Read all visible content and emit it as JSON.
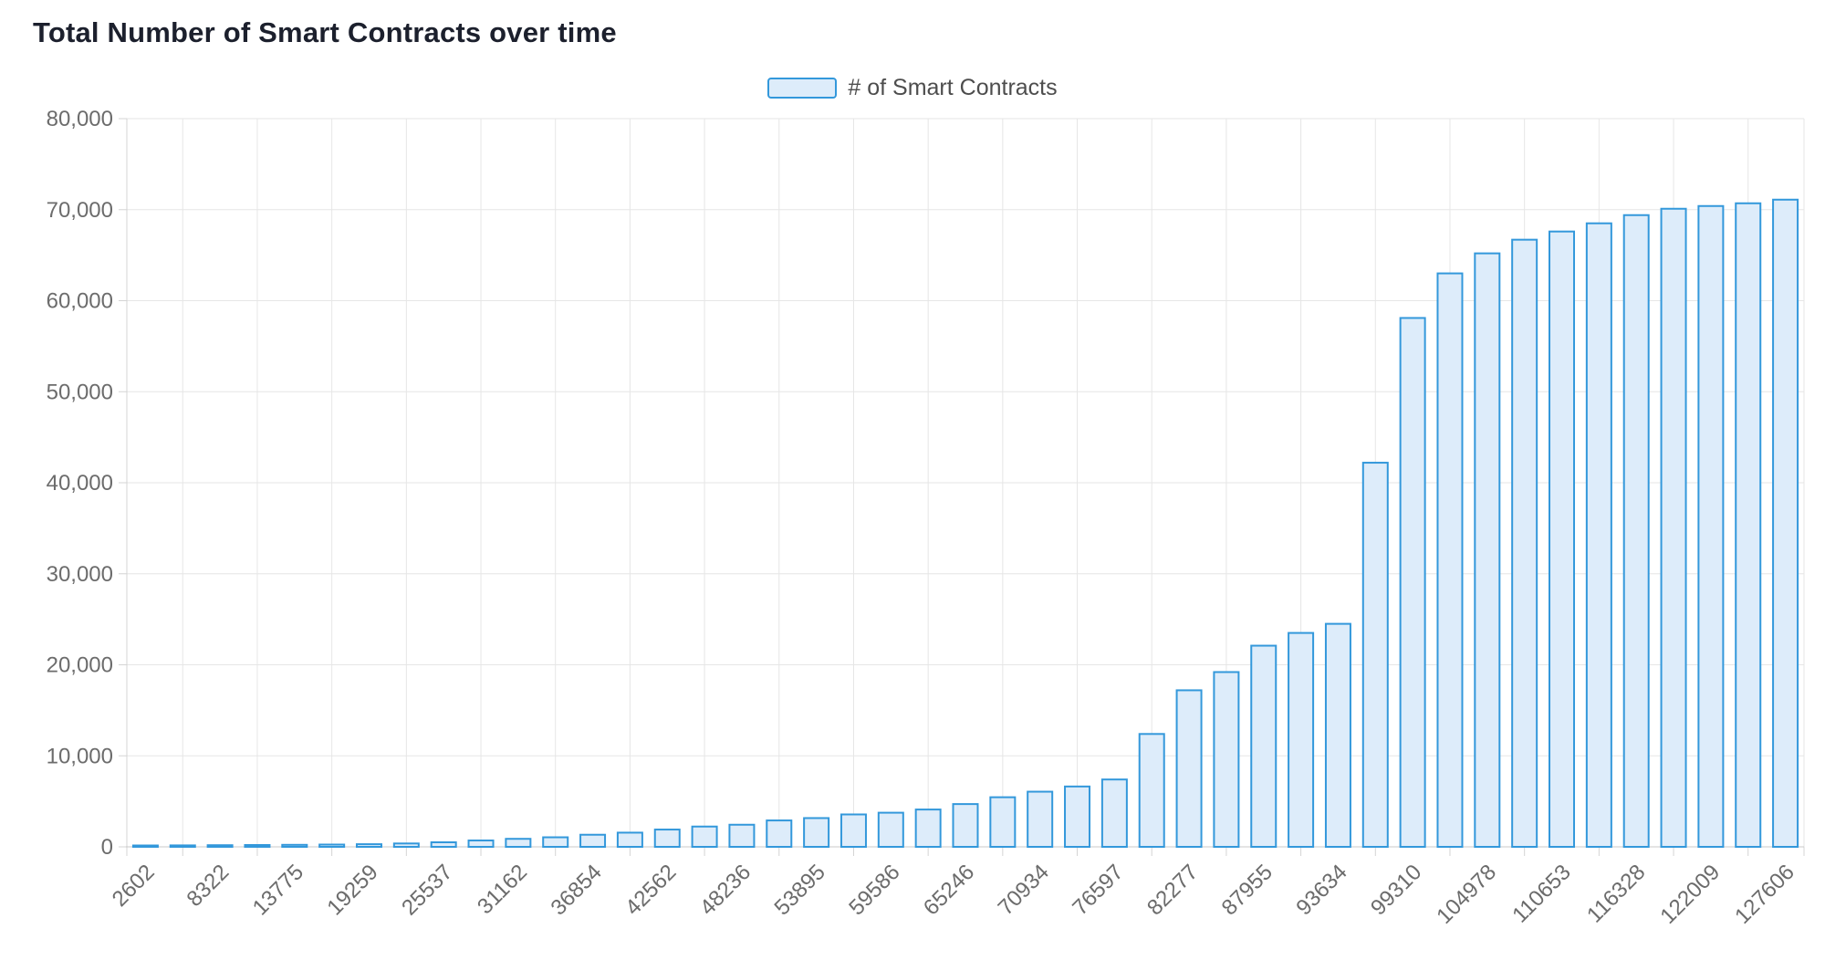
{
  "title": "Total Number of Smart Contracts over time",
  "legend": {
    "label": "# of Smart Contracts"
  },
  "colors": {
    "background": "#ffffff",
    "bar_fill": "#ddecfa",
    "bar_border": "#3398db",
    "grid_line": "#e6e6e6",
    "axis_line": "#c8c8c8",
    "tick_line": "#d4d4d4",
    "axis_text": "#6c6c6c",
    "title_text": "#1c202d",
    "legend_text": "#4d4d4d"
  },
  "chart_data": {
    "type": "bar",
    "title": "Total Number of Smart Contracts over time",
    "series_name": "# of Smart Contracts",
    "xlabel": "",
    "ylabel": "",
    "ylim": [
      0,
      80000
    ],
    "y_tick_step": 10000,
    "y_tick_labels": [
      "0",
      "10,000",
      "20,000",
      "30,000",
      "40,000",
      "50,000",
      "60,000",
      "70,000",
      "80,000"
    ],
    "grid": true,
    "legend_position": "top-center",
    "x_tick_rotation": 45,
    "x_labels_every": 2,
    "bars": [
      {
        "label": "2602",
        "value": 150
      },
      {
        "label": "",
        "value": 160
      },
      {
        "label": "8322",
        "value": 180
      },
      {
        "label": "",
        "value": 200
      },
      {
        "label": "13775",
        "value": 220
      },
      {
        "label": "",
        "value": 250
      },
      {
        "label": "19259",
        "value": 290
      },
      {
        "label": "",
        "value": 370
      },
      {
        "label": "25537",
        "value": 500
      },
      {
        "label": "",
        "value": 700
      },
      {
        "label": "31162",
        "value": 880
      },
      {
        "label": "",
        "value": 1050
      },
      {
        "label": "36854",
        "value": 1330
      },
      {
        "label": "",
        "value": 1560
      },
      {
        "label": "42562",
        "value": 1900
      },
      {
        "label": "",
        "value": 2230
      },
      {
        "label": "48236",
        "value": 2430
      },
      {
        "label": "",
        "value": 2900
      },
      {
        "label": "53895",
        "value": 3160
      },
      {
        "label": "",
        "value": 3560
      },
      {
        "label": "59586",
        "value": 3750
      },
      {
        "label": "",
        "value": 4100
      },
      {
        "label": "65246",
        "value": 4700
      },
      {
        "label": "",
        "value": 5450
      },
      {
        "label": "70934",
        "value": 6060
      },
      {
        "label": "",
        "value": 6630
      },
      {
        "label": "76597",
        "value": 7400
      },
      {
        "label": "",
        "value": 12400
      },
      {
        "label": "82277",
        "value": 17200
      },
      {
        "label": "",
        "value": 19200
      },
      {
        "label": "87955",
        "value": 22100
      },
      {
        "label": "",
        "value": 23500
      },
      {
        "label": "93634",
        "value": 24500
      },
      {
        "label": "",
        "value": 42200
      },
      {
        "label": "99310",
        "value": 58100
      },
      {
        "label": "",
        "value": 63000
      },
      {
        "label": "104978",
        "value": 65200
      },
      {
        "label": "",
        "value": 66700
      },
      {
        "label": "110653",
        "value": 67600
      },
      {
        "label": "",
        "value": 68500
      },
      {
        "label": "116328",
        "value": 69400
      },
      {
        "label": "",
        "value": 70100
      },
      {
        "label": "122009",
        "value": 70400
      },
      {
        "label": "",
        "value": 70700
      },
      {
        "label": "127606",
        "value": 71100
      }
    ]
  }
}
